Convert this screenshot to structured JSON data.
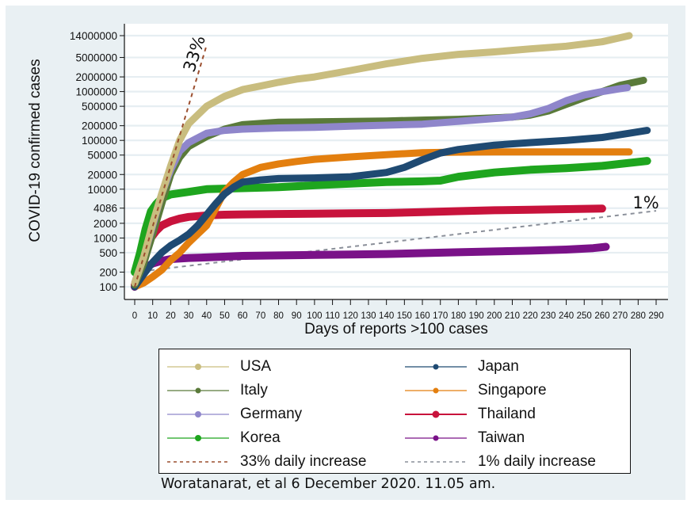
{
  "chart_data": {
    "type": "line",
    "title": "",
    "xlabel": "Days of reports >100 cases",
    "ylabel": "COVID-19 confirmed cases",
    "yscale": "log",
    "xlim": [
      0,
      290
    ],
    "ylim": [
      100,
      14000000
    ],
    "grid": true,
    "x_ticks": [
      0,
      10,
      20,
      30,
      40,
      50,
      60,
      70,
      80,
      90,
      100,
      110,
      120,
      130,
      140,
      150,
      160,
      170,
      180,
      190,
      200,
      210,
      220,
      230,
      240,
      250,
      260,
      270,
      280,
      290
    ],
    "y_ticks": [
      100,
      200,
      500,
      1000,
      2000,
      4086,
      10000,
      20000,
      50000,
      100000,
      200000,
      500000,
      1000000,
      2000000,
      5000000,
      14000000
    ],
    "y_tick_labels": [
      "100",
      "200",
      "500",
      "1000",
      "2000",
      "4086",
      "10000",
      "20000",
      "50000",
      "100000",
      "200000",
      "500000",
      "1000000",
      "2000000",
      "5000000",
      "14000000"
    ],
    "series": [
      {
        "name": "USA",
        "color": "#c9bd7f",
        "style": "solid",
        "x": [
          0,
          5,
          10,
          15,
          20,
          25,
          30,
          40,
          50,
          60,
          70,
          80,
          90,
          100,
          120,
          140,
          160,
          180,
          200,
          220,
          240,
          260,
          275
        ],
        "y": [
          120,
          400,
          2000,
          8000,
          30000,
          100000,
          220000,
          500000,
          800000,
          1100000,
          1300000,
          1550000,
          1800000,
          2000000,
          2700000,
          3700000,
          4800000,
          5800000,
          6500000,
          7500000,
          8500000,
          10500000,
          14000000
        ]
      },
      {
        "name": "Italy",
        "color": "#5a7a3a",
        "style": "solid",
        "x": [
          0,
          5,
          10,
          15,
          20,
          25,
          30,
          40,
          50,
          60,
          80,
          100,
          120,
          140,
          160,
          180,
          200,
          210,
          220,
          230,
          240,
          250,
          260,
          270,
          283
        ],
        "y": [
          110,
          300,
          1200,
          5000,
          20000,
          45000,
          75000,
          120000,
          170000,
          210000,
          235000,
          240000,
          245000,
          250000,
          260000,
          270000,
          290000,
          300000,
          330000,
          400000,
          550000,
          750000,
          1000000,
          1350000,
          1700000
        ]
      },
      {
        "name": "Germany",
        "color": "#8f86cb",
        "style": "solid",
        "x": [
          0,
          5,
          10,
          15,
          20,
          25,
          30,
          40,
          50,
          60,
          80,
          100,
          120,
          140,
          160,
          180,
          200,
          210,
          220,
          230,
          240,
          250,
          260,
          270,
          274
        ],
        "y": [
          120,
          400,
          1800,
          8000,
          25000,
          60000,
          90000,
          140000,
          160000,
          170000,
          180000,
          185000,
          195000,
          205000,
          215000,
          245000,
          280000,
          300000,
          350000,
          450000,
          650000,
          850000,
          1000000,
          1150000,
          1200000
        ]
      },
      {
        "name": "Korea",
        "color": "#1ea51e",
        "style": "solid",
        "x": [
          0,
          3,
          6,
          9,
          12,
          15,
          20,
          30,
          40,
          60,
          80,
          100,
          120,
          140,
          160,
          170,
          180,
          200,
          220,
          240,
          260,
          270,
          285
        ],
        "y": [
          200,
          500,
          1500,
          3500,
          5000,
          6500,
          7800,
          8800,
          10000,
          10500,
          11000,
          12000,
          13000,
          14000,
          14500,
          15000,
          18000,
          22000,
          25000,
          27000,
          30000,
          33000,
          38000
        ]
      },
      {
        "name": "Japan",
        "color": "#1f4a72",
        "style": "solid",
        "x": [
          0,
          5,
          10,
          15,
          20,
          25,
          30,
          35,
          40,
          45,
          50,
          55,
          60,
          70,
          80,
          100,
          120,
          140,
          150,
          160,
          170,
          180,
          200,
          220,
          240,
          260,
          275,
          285
        ],
        "y": [
          100,
          180,
          320,
          500,
          700,
          900,
          1200,
          1800,
          3000,
          5000,
          8000,
          11000,
          14000,
          15500,
          16500,
          17000,
          18000,
          22000,
          28000,
          40000,
          55000,
          65000,
          80000,
          90000,
          100000,
          115000,
          140000,
          160000
        ]
      },
      {
        "name": "Singapore",
        "color": "#e37f0f",
        "style": "solid",
        "x": [
          0,
          5,
          10,
          15,
          20,
          25,
          30,
          35,
          40,
          45,
          50,
          55,
          60,
          70,
          80,
          90,
          100,
          120,
          140,
          160,
          180,
          200,
          220,
          240,
          260,
          275
        ],
        "y": [
          100,
          120,
          160,
          220,
          350,
          500,
          800,
          1200,
          1800,
          4000,
          9000,
          14000,
          20000,
          28000,
          33000,
          37000,
          41000,
          46000,
          51000,
          56000,
          57500,
          58000,
          58000,
          58000,
          58000,
          58000
        ]
      },
      {
        "name": "Thailand",
        "color": "#c8133c",
        "style": "solid",
        "x": [
          0,
          3,
          6,
          9,
          12,
          15,
          20,
          25,
          30,
          40,
          50,
          60,
          80,
          100,
          120,
          140,
          160,
          180,
          200,
          220,
          240,
          260
        ],
        "y": [
          110,
          250,
          600,
          1000,
          1400,
          1800,
          2200,
          2500,
          2700,
          2900,
          3000,
          3050,
          3100,
          3150,
          3200,
          3250,
          3400,
          3550,
          3700,
          3800,
          3900,
          4000
        ]
      },
      {
        "name": "Taiwan",
        "color": "#7a1288",
        "style": "solid",
        "x": [
          0,
          3,
          6,
          10,
          15,
          20,
          30,
          40,
          60,
          80,
          100,
          120,
          140,
          160,
          180,
          200,
          220,
          240,
          255,
          262
        ],
        "y": [
          100,
          180,
          250,
          300,
          340,
          370,
          390,
          400,
          430,
          440,
          450,
          460,
          470,
          490,
          510,
          530,
          550,
          580,
          620,
          660
        ]
      },
      {
        "name": "33% daily increase",
        "color": "#9b4f2f",
        "style": "dashed",
        "x": [
          0,
          40
        ],
        "y": [
          100,
          9000000
        ]
      },
      {
        "name": "1% daily increase",
        "color": "#8a8f99",
        "style": "dashed",
        "x": [
          0,
          290
        ],
        "y": [
          200,
          3600
        ]
      }
    ],
    "annotations": [
      {
        "text": "33%",
        "near_series": "33% daily increase",
        "rotated": true
      },
      {
        "text": "1%",
        "near_series": "1% daily increase"
      }
    ],
    "legend": {
      "placement": "bottom",
      "columns": 2,
      "entries": [
        {
          "label": "USA",
          "color": "#c9bd7f",
          "style": "solid"
        },
        {
          "label": "Japan",
          "color": "#1f4a72",
          "style": "solid"
        },
        {
          "label": "Italy",
          "color": "#5a7a3a",
          "style": "solid"
        },
        {
          "label": "Singapore",
          "color": "#e37f0f",
          "style": "solid"
        },
        {
          "label": "Germany",
          "color": "#8f86cb",
          "style": "solid"
        },
        {
          "label": "Thailand",
          "color": "#c8133c",
          "style": "solid"
        },
        {
          "label": "Korea",
          "color": "#1ea51e",
          "style": "solid"
        },
        {
          "label": "Taiwan",
          "color": "#7a1288",
          "style": "solid"
        },
        {
          "label": "33% daily increase",
          "color": "#9b4f2f",
          "style": "dashed"
        },
        {
          "label": "1% daily increase",
          "color": "#8a8f99",
          "style": "dashed"
        }
      ]
    }
  },
  "credit": "Woratanarat, et al 6 December 2020. 11.05 am."
}
